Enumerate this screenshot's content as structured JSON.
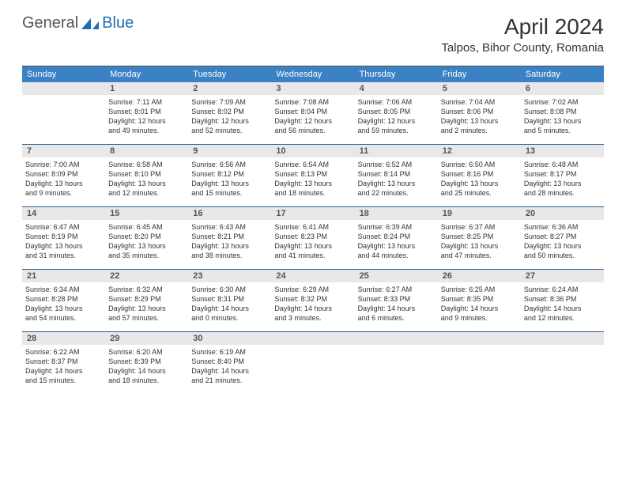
{
  "logo": {
    "text1": "General",
    "text2": "Blue"
  },
  "title": "April 2024",
  "location": "Talpos, Bihor County, Romania",
  "colors": {
    "header_bg": "#3b82c4",
    "border": "#2a5a8a",
    "daynum_bg": "#e8e8e8",
    "logo_blue": "#1f6fb2"
  },
  "weekdays": [
    "Sunday",
    "Monday",
    "Tuesday",
    "Wednesday",
    "Thursday",
    "Friday",
    "Saturday"
  ],
  "weeks": [
    [
      {
        "num": "",
        "lines": []
      },
      {
        "num": "1",
        "lines": [
          "Sunrise: 7:11 AM",
          "Sunset: 8:01 PM",
          "Daylight: 12 hours",
          "and 49 minutes."
        ]
      },
      {
        "num": "2",
        "lines": [
          "Sunrise: 7:09 AM",
          "Sunset: 8:02 PM",
          "Daylight: 12 hours",
          "and 52 minutes."
        ]
      },
      {
        "num": "3",
        "lines": [
          "Sunrise: 7:08 AM",
          "Sunset: 8:04 PM",
          "Daylight: 12 hours",
          "and 56 minutes."
        ]
      },
      {
        "num": "4",
        "lines": [
          "Sunrise: 7:06 AM",
          "Sunset: 8:05 PM",
          "Daylight: 12 hours",
          "and 59 minutes."
        ]
      },
      {
        "num": "5",
        "lines": [
          "Sunrise: 7:04 AM",
          "Sunset: 8:06 PM",
          "Daylight: 13 hours",
          "and 2 minutes."
        ]
      },
      {
        "num": "6",
        "lines": [
          "Sunrise: 7:02 AM",
          "Sunset: 8:08 PM",
          "Daylight: 13 hours",
          "and 5 minutes."
        ]
      }
    ],
    [
      {
        "num": "7",
        "lines": [
          "Sunrise: 7:00 AM",
          "Sunset: 8:09 PM",
          "Daylight: 13 hours",
          "and 9 minutes."
        ]
      },
      {
        "num": "8",
        "lines": [
          "Sunrise: 6:58 AM",
          "Sunset: 8:10 PM",
          "Daylight: 13 hours",
          "and 12 minutes."
        ]
      },
      {
        "num": "9",
        "lines": [
          "Sunrise: 6:56 AM",
          "Sunset: 8:12 PM",
          "Daylight: 13 hours",
          "and 15 minutes."
        ]
      },
      {
        "num": "10",
        "lines": [
          "Sunrise: 6:54 AM",
          "Sunset: 8:13 PM",
          "Daylight: 13 hours",
          "and 18 minutes."
        ]
      },
      {
        "num": "11",
        "lines": [
          "Sunrise: 6:52 AM",
          "Sunset: 8:14 PM",
          "Daylight: 13 hours",
          "and 22 minutes."
        ]
      },
      {
        "num": "12",
        "lines": [
          "Sunrise: 6:50 AM",
          "Sunset: 8:16 PM",
          "Daylight: 13 hours",
          "and 25 minutes."
        ]
      },
      {
        "num": "13",
        "lines": [
          "Sunrise: 6:48 AM",
          "Sunset: 8:17 PM",
          "Daylight: 13 hours",
          "and 28 minutes."
        ]
      }
    ],
    [
      {
        "num": "14",
        "lines": [
          "Sunrise: 6:47 AM",
          "Sunset: 8:19 PM",
          "Daylight: 13 hours",
          "and 31 minutes."
        ]
      },
      {
        "num": "15",
        "lines": [
          "Sunrise: 6:45 AM",
          "Sunset: 8:20 PM",
          "Daylight: 13 hours",
          "and 35 minutes."
        ]
      },
      {
        "num": "16",
        "lines": [
          "Sunrise: 6:43 AM",
          "Sunset: 8:21 PM",
          "Daylight: 13 hours",
          "and 38 minutes."
        ]
      },
      {
        "num": "17",
        "lines": [
          "Sunrise: 6:41 AM",
          "Sunset: 8:23 PM",
          "Daylight: 13 hours",
          "and 41 minutes."
        ]
      },
      {
        "num": "18",
        "lines": [
          "Sunrise: 6:39 AM",
          "Sunset: 8:24 PM",
          "Daylight: 13 hours",
          "and 44 minutes."
        ]
      },
      {
        "num": "19",
        "lines": [
          "Sunrise: 6:37 AM",
          "Sunset: 8:25 PM",
          "Daylight: 13 hours",
          "and 47 minutes."
        ]
      },
      {
        "num": "20",
        "lines": [
          "Sunrise: 6:36 AM",
          "Sunset: 8:27 PM",
          "Daylight: 13 hours",
          "and 50 minutes."
        ]
      }
    ],
    [
      {
        "num": "21",
        "lines": [
          "Sunrise: 6:34 AM",
          "Sunset: 8:28 PM",
          "Daylight: 13 hours",
          "and 54 minutes."
        ]
      },
      {
        "num": "22",
        "lines": [
          "Sunrise: 6:32 AM",
          "Sunset: 8:29 PM",
          "Daylight: 13 hours",
          "and 57 minutes."
        ]
      },
      {
        "num": "23",
        "lines": [
          "Sunrise: 6:30 AM",
          "Sunset: 8:31 PM",
          "Daylight: 14 hours",
          "and 0 minutes."
        ]
      },
      {
        "num": "24",
        "lines": [
          "Sunrise: 6:29 AM",
          "Sunset: 8:32 PM",
          "Daylight: 14 hours",
          "and 3 minutes."
        ]
      },
      {
        "num": "25",
        "lines": [
          "Sunrise: 6:27 AM",
          "Sunset: 8:33 PM",
          "Daylight: 14 hours",
          "and 6 minutes."
        ]
      },
      {
        "num": "26",
        "lines": [
          "Sunrise: 6:25 AM",
          "Sunset: 8:35 PM",
          "Daylight: 14 hours",
          "and 9 minutes."
        ]
      },
      {
        "num": "27",
        "lines": [
          "Sunrise: 6:24 AM",
          "Sunset: 8:36 PM",
          "Daylight: 14 hours",
          "and 12 minutes."
        ]
      }
    ],
    [
      {
        "num": "28",
        "lines": [
          "Sunrise: 6:22 AM",
          "Sunset: 8:37 PM",
          "Daylight: 14 hours",
          "and 15 minutes."
        ]
      },
      {
        "num": "29",
        "lines": [
          "Sunrise: 6:20 AM",
          "Sunset: 8:39 PM",
          "Daylight: 14 hours",
          "and 18 minutes."
        ]
      },
      {
        "num": "30",
        "lines": [
          "Sunrise: 6:19 AM",
          "Sunset: 8:40 PM",
          "Daylight: 14 hours",
          "and 21 minutes."
        ]
      },
      {
        "num": "",
        "lines": []
      },
      {
        "num": "",
        "lines": []
      },
      {
        "num": "",
        "lines": []
      },
      {
        "num": "",
        "lines": []
      }
    ]
  ]
}
